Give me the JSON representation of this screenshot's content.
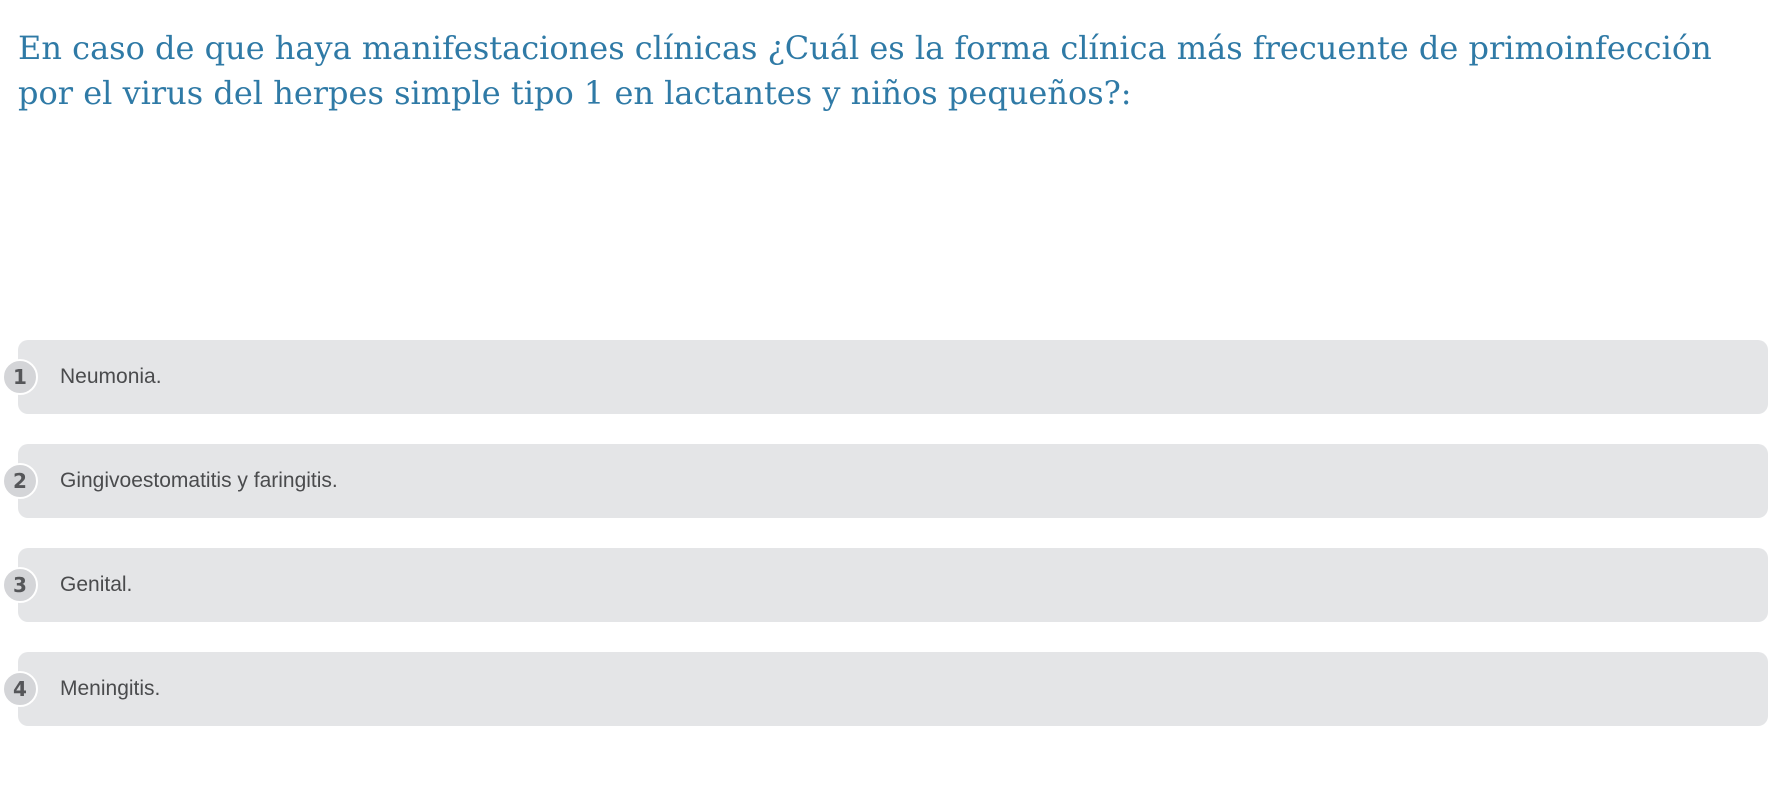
{
  "question": {
    "text": "En caso de que haya manifestaciones clínicas ¿Cuál es la forma clínica más frecuente de primoinfección por el virus del herpes simple tipo 1 en lactantes y niños pequeños?:"
  },
  "options": [
    {
      "number": "1",
      "label": "Neumonia."
    },
    {
      "number": "2",
      "label": "Gingivoestomatitis y faringitis."
    },
    {
      "number": "3",
      "label": "Genital."
    },
    {
      "number": "4",
      "label": "Meningitis."
    }
  ],
  "colors": {
    "question_text": "#2f7aa6",
    "option_background": "#e4e5e7",
    "number_badge": "#d4d5d8",
    "option_text": "#4a4b4d"
  }
}
